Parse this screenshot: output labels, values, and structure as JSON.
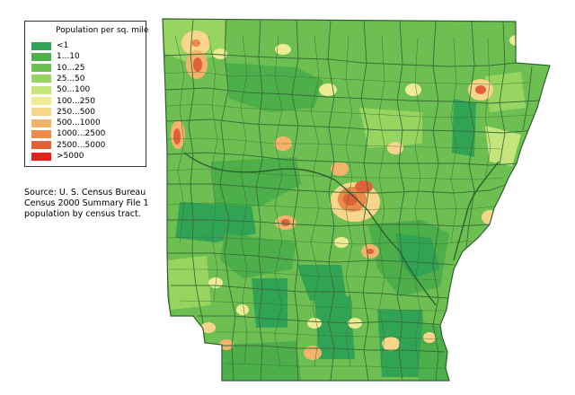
{
  "legend": {
    "title": "Population per sq. mile",
    "classes": [
      {
        "label": "<1",
        "color": "#31a354"
      },
      {
        "label": "1...10",
        "color": "#4daf4a"
      },
      {
        "label": "10...25",
        "color": "#6cbf50"
      },
      {
        "label": "25...50",
        "color": "#98d460"
      },
      {
        "label": "50...100",
        "color": "#c5e57c"
      },
      {
        "label": "100...250",
        "color": "#eeeb95"
      },
      {
        "label": "250...500",
        "color": "#f7d58a"
      },
      {
        "label": "500...1000",
        "color": "#f3b36b"
      },
      {
        "label": "1000...2500",
        "color": "#ec8a4b"
      },
      {
        "label": "2500...5000",
        "color": "#e0603a"
      },
      {
        "label": ">5000",
        "color": "#e8201c"
      }
    ]
  },
  "source": {
    "line1": "Source: U. S. Census Bureau",
    "line2": "Census 2000 Summary File 1",
    "line3": "population by census tract."
  },
  "colors": {
    "boundary": "#3a6e3a",
    "state_outline": "#2f5f2f",
    "background": "#ffffff"
  }
}
